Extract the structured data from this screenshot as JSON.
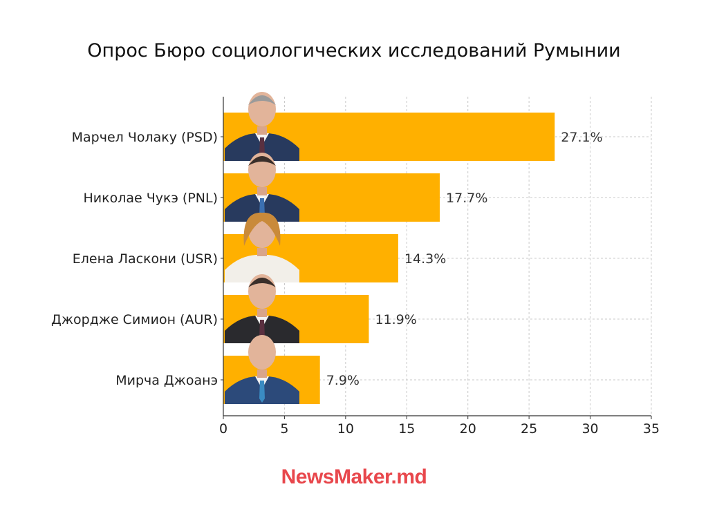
{
  "chart_data": {
    "type": "bar",
    "orientation": "horizontal",
    "title": "Опрос Бюро социологических исследований Румынии",
    "categories": [
      "Марчел Чолаку (PSD)",
      "Николае Чукэ (PNL)",
      "Елена Ласкони (USR)",
      "Джордже Симион (AUR)",
      "Мирча Джоанэ"
    ],
    "values": [
      27.1,
      17.7,
      14.3,
      11.9,
      7.9
    ],
    "data_labels": [
      "27.1%",
      "17.7%",
      "14.3%",
      "11.9%",
      "7.9%"
    ],
    "xlim": [
      0,
      35
    ],
    "xticks": [
      0,
      5,
      10,
      15,
      20,
      25,
      30,
      35
    ],
    "grid": true,
    "bar_color": "#ffb000"
  },
  "brand": {
    "name": "NewsMaker",
    "suffix": ".md",
    "color": "#e8474c"
  }
}
